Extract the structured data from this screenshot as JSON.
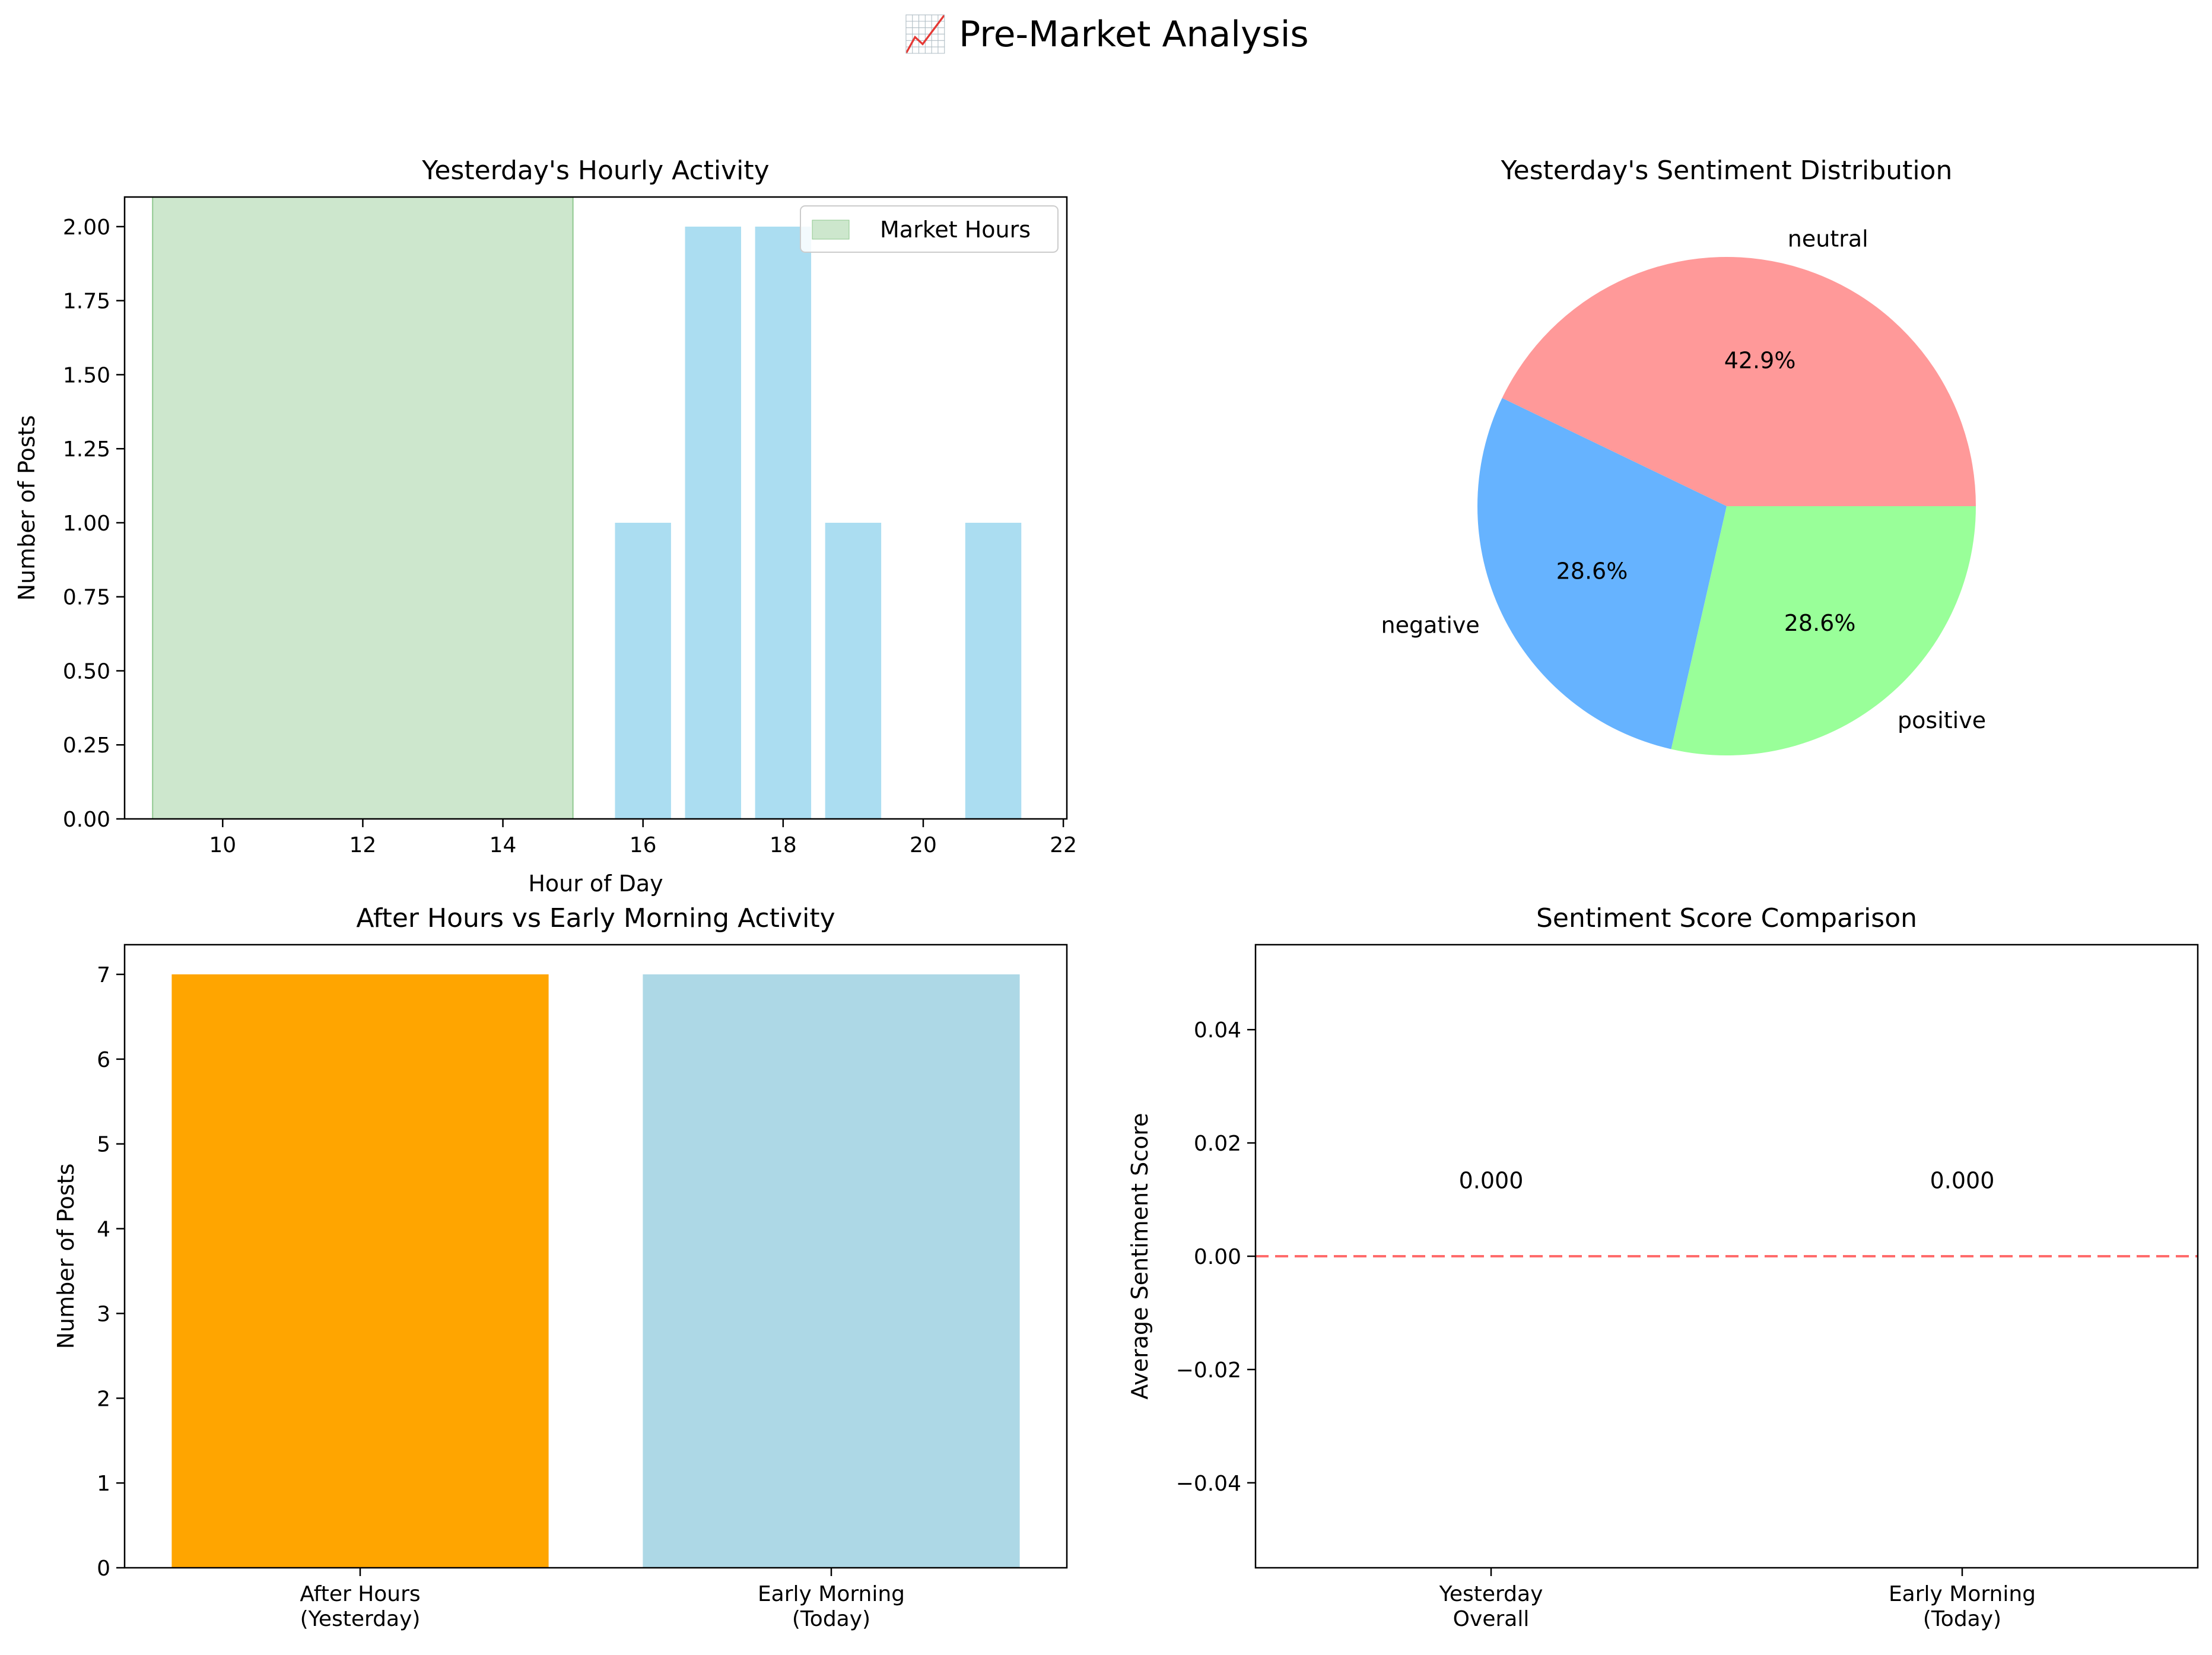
{
  "figure": {
    "suptitle": "📈 Pre-Market Analysis"
  },
  "chart_data": [
    {
      "id": "hourly",
      "type": "bar",
      "title": "Yesterday's Hourly Activity",
      "xlabel": "Hour of Day",
      "ylabel": "Number of Posts",
      "x": [
        16,
        17,
        18,
        19,
        21
      ],
      "values": [
        1,
        2,
        2,
        1,
        1
      ],
      "xlim": [
        8.6,
        22.05
      ],
      "ylim": [
        0,
        2.1
      ],
      "xticks": [
        "10",
        "12",
        "14",
        "16",
        "18",
        "20",
        "22"
      ],
      "yticks": [
        "0.00",
        "0.25",
        "0.50",
        "0.75",
        "1.00",
        "1.25",
        "1.50",
        "1.75",
        "2.00"
      ],
      "bar_color": "#87ceeb",
      "span": {
        "start": 9,
        "end": 15,
        "label": "Market Hours",
        "color": "#90c990"
      },
      "legend": "top-right"
    },
    {
      "id": "sentiment_pie",
      "type": "pie",
      "title": "Yesterday's Sentiment Distribution",
      "slices": [
        {
          "label": "neutral",
          "value": 42.9,
          "pct_label": "42.9%",
          "color": "#ff9999"
        },
        {
          "label": "negative",
          "value": 28.6,
          "pct_label": "28.6%",
          "color": "#66b3ff"
        },
        {
          "label": "positive",
          "value": 28.6,
          "pct_label": "28.6%",
          "color": "#99ff99"
        }
      ]
    },
    {
      "id": "activity_compare",
      "type": "bar",
      "title": "After Hours vs Early Morning Activity",
      "ylabel": "Number of Posts",
      "categories": [
        [
          "After Hours",
          "(Yesterday)"
        ],
        [
          "Early Morning",
          "(Today)"
        ]
      ],
      "values": [
        7,
        7
      ],
      "colors": [
        "#ffa500",
        "#add8e6"
      ],
      "ylim": [
        0,
        7.35
      ],
      "yticks": [
        "0",
        "1",
        "2",
        "3",
        "4",
        "5",
        "6",
        "7"
      ]
    },
    {
      "id": "score_compare",
      "type": "bar",
      "title": "Sentiment Score Comparison",
      "ylabel": "Average Sentiment Score",
      "categories": [
        [
          "Yesterday",
          "Overall"
        ],
        [
          "Early Morning",
          "(Today)"
        ]
      ],
      "values": [
        0.0,
        0.0
      ],
      "value_labels": [
        "0.000",
        "0.000"
      ],
      "ylim": [
        -0.055,
        0.055
      ],
      "yticks": [
        "0.04",
        "0.02",
        "0.00",
        "−0.02",
        "−0.04"
      ],
      "reference_line": {
        "y": 0,
        "color": "#ff6b6b",
        "style": "dashed"
      }
    }
  ]
}
